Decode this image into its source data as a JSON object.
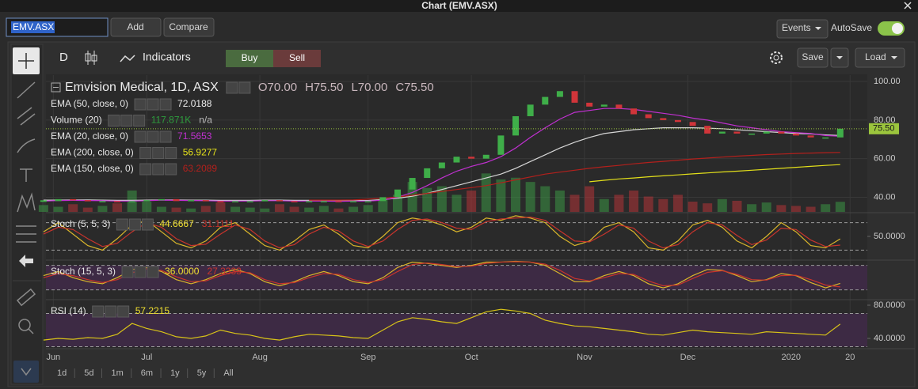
{
  "window": {
    "title": "Chart (EMV.ASX)"
  },
  "toolbar": {
    "symbol": "EMV.ASX",
    "add": "Add",
    "compare": "Compare",
    "events": "Events",
    "autosave": "AutoSave"
  },
  "chart_toolbar": {
    "interval": "D",
    "indicators": "Indicators",
    "buy": "Buy",
    "sell": "Sell",
    "save": "Save",
    "load": "Load"
  },
  "chart_data": {
    "type": "candlestick",
    "title": "Emvision Medical, 1D, ASX",
    "ohlc": [
      "O70.00",
      "H75.50",
      "L70.00",
      "C75.50"
    ],
    "xlim": [
      0.5,
      167.5
    ],
    "xticks": [
      {
        "value": 2,
        "label": "Jun"
      },
      {
        "value": 21,
        "label": "Jul"
      },
      {
        "value": 44,
        "label": "Aug"
      },
      {
        "value": 66,
        "label": "Sep"
      },
      {
        "value": 87,
        "label": "Oct"
      },
      {
        "value": 110,
        "label": "Nov"
      },
      {
        "value": 131,
        "label": "Dec"
      },
      {
        "value": 152,
        "label": "2020"
      },
      {
        "value": 164,
        "label": "20"
      }
    ],
    "ylim": [
      32.4,
      103.3
    ],
    "yticks": [
      {
        "value": 100,
        "label": "100.00"
      },
      {
        "value": 80,
        "label": "80.00"
      },
      {
        "value": 60,
        "label": "60.00"
      },
      {
        "value": 40,
        "label": "40.00"
      }
    ],
    "grid": true,
    "x": [
      0,
      3,
      6,
      9,
      12,
      15,
      18,
      21,
      24,
      27,
      30,
      33,
      36,
      39,
      42,
      45,
      48,
      51,
      54,
      57,
      60,
      63,
      66,
      69,
      72,
      75,
      78,
      81,
      84,
      87,
      90,
      93,
      96,
      99,
      102,
      105,
      108,
      111,
      114,
      117,
      120,
      123,
      126,
      129,
      132,
      135,
      138,
      141,
      144,
      147,
      150,
      153,
      156,
      159,
      162
    ],
    "close": [
      38,
      39,
      38.5,
      38,
      38,
      37.5,
      38,
      38.5,
      39,
      38,
      38.5,
      38,
      37.5,
      38,
      38,
      38.5,
      38,
      37.5,
      38,
      38,
      37.5,
      38,
      38,
      40,
      44,
      50,
      55,
      58,
      61,
      60,
      62,
      72,
      82,
      88,
      92,
      95,
      89,
      87,
      88,
      86,
      83,
      81,
      80,
      79,
      77,
      73,
      74,
      73,
      73,
      74,
      73,
      72,
      71,
      71,
      75.5
    ],
    "up_color": "#3fae49",
    "down_color": "#d0353a",
    "last_price": {
      "value": 75.5,
      "label": "75.50",
      "color": "#9bc53d"
    },
    "emas": [
      {
        "name": "EMA (50, close, 0)",
        "value_label": "72.0188",
        "color": "#d6d6d6",
        "values": [
          38.5,
          38.5,
          38.6,
          38.6,
          38.5,
          38.4,
          38.4,
          38.5,
          38.6,
          38.6,
          38.5,
          38.5,
          38.4,
          38.4,
          38.4,
          38.5,
          38.5,
          38.4,
          38.4,
          38.4,
          38.3,
          38.3,
          38.3,
          38.8,
          39.5,
          40.5,
          42,
          44,
          46,
          48,
          50,
          52,
          55,
          58.5,
          62,
          65.5,
          68.5,
          71,
          73,
          74,
          75,
          75.5,
          76,
          76,
          76,
          75.8,
          75.5,
          75,
          74.5,
          74,
          73.5,
          73,
          72.8,
          72.3,
          72
        ]
      },
      {
        "name": "EMA (20, close, 0)",
        "value_label": "71.5653",
        "color": "#c030d0",
        "values": [
          38,
          38.3,
          38.4,
          38.3,
          38.2,
          38,
          38,
          38.2,
          38.5,
          38.4,
          38.3,
          38.2,
          38,
          38,
          38,
          38.2,
          38.2,
          38,
          38,
          38,
          37.9,
          38,
          38,
          38.5,
          40,
          42.5,
          46,
          50,
          53.5,
          56,
          58,
          61,
          65.5,
          71,
          76,
          80.5,
          84,
          85,
          86,
          86,
          85.5,
          84.5,
          83.5,
          82.5,
          81,
          80,
          78.5,
          77,
          76,
          75,
          74,
          73.5,
          73,
          72,
          71.6
        ]
      },
      {
        "name": "EMA (200, close, 0)",
        "value_label": "56.9277",
        "color": "#e3e01a",
        "values": [
          null,
          null,
          null,
          null,
          null,
          null,
          null,
          null,
          null,
          null,
          null,
          null,
          null,
          null,
          null,
          null,
          null,
          null,
          null,
          null,
          null,
          null,
          null,
          null,
          null,
          null,
          null,
          null,
          null,
          null,
          null,
          null,
          null,
          null,
          null,
          null,
          null,
          48,
          48.8,
          49.5,
          50,
          50.6,
          51.1,
          51.6,
          52.1,
          52.6,
          53.1,
          53.5,
          54,
          54.5,
          55,
          55.5,
          56,
          56.5,
          56.9
        ]
      },
      {
        "name": "EMA (150, close, 0)",
        "value_label": "63.2089",
        "color": "#b3201c",
        "values": [
          null,
          null,
          null,
          null,
          null,
          null,
          null,
          null,
          null,
          null,
          null,
          null,
          null,
          null,
          null,
          null,
          null,
          null,
          38.5,
          38.5,
          38.5,
          38.6,
          39,
          39.5,
          40.2,
          41,
          42,
          43,
          44,
          45,
          46,
          47.5,
          49,
          50.5,
          52,
          53,
          54,
          55,
          55.8,
          56.5,
          57.3,
          58,
          58.6,
          59.2,
          59.8,
          60.3,
          60.8,
          61.3,
          61.7,
          62.1,
          62.4,
          62.7,
          62.9,
          63.1,
          63.2
        ]
      }
    ],
    "volume": {
      "name": "Volume (20)",
      "value_label": "117.871K",
      "average_label": "n/a",
      "color": "#2e9e3e",
      "ylim": [
        0,
        1600
      ],
      "values": [
        80,
        60,
        90,
        50,
        70,
        100,
        250,
        120,
        60,
        50,
        40,
        70,
        110,
        60,
        50,
        40,
        90,
        60,
        50,
        70,
        40,
        60,
        80,
        150,
        200,
        350,
        280,
        300,
        200,
        250,
        450,
        380,
        400,
        350,
        300,
        250,
        200,
        300,
        150,
        200,
        250,
        180,
        150,
        200,
        120,
        100,
        150,
        130,
        90,
        110,
        80,
        70,
        60,
        90,
        117.871
      ]
    },
    "oscillators": [
      {
        "name": "Stoch (5, 5, 3)",
        "ylim": [
          0,
          100
        ],
        "yticks": [
          {
            "value": 50,
            "label": "50.0000"
          }
        ],
        "bands": [
          20,
          80
        ],
        "fill": false,
        "series": [
          {
            "value_label": "44.6667",
            "color": "#d9b52a",
            "values": [
              60,
              80,
              55,
              30,
              20,
              45,
              75,
              85,
              60,
              35,
              25,
              40,
              70,
              80,
              55,
              30,
              20,
              40,
              65,
              75,
              55,
              30,
              25,
              50,
              80,
              90,
              85,
              75,
              60,
              70,
              90,
              85,
              95,
              90,
              80,
              50,
              30,
              40,
              70,
              80,
              60,
              25,
              20,
              40,
              75,
              85,
              70,
              40,
              25,
              50,
              80,
              60,
              30,
              25,
              44.6667
            ]
          },
          {
            "value_label": "31.1111",
            "color": "#c8342c",
            "values": [
              55,
              70,
              65,
              45,
              28,
              35,
              60,
              80,
              70,
              45,
              30,
              33,
              55,
              75,
              65,
              40,
              25,
              32,
              55,
              70,
              62,
              40,
              28,
              40,
              65,
              85,
              88,
              80,
              68,
              65,
              82,
              88,
              90,
              92,
              85,
              62,
              40,
              38,
              55,
              75,
              68,
              40,
              25,
              32,
              60,
              80,
              75,
              52,
              32,
              42,
              68,
              65,
              42,
              28,
              31.1111
            ]
          }
        ]
      },
      {
        "name": "Stoch (15, 5, 3)",
        "ylim": [
          -2,
          91
        ],
        "yticks": [],
        "bands": [
          20,
          80
        ],
        "fill": true,
        "series": [
          {
            "value_label": "36.0000",
            "color": "#d9b52a",
            "values": [
              55,
              65,
              50,
              40,
              35,
              50,
              70,
              75,
              65,
              45,
              35,
              45,
              60,
              70,
              60,
              40,
              30,
              40,
              55,
              65,
              55,
              40,
              35,
              50,
              75,
              88,
              85,
              80,
              75,
              80,
              88,
              88,
              90,
              88,
              80,
              60,
              40,
              40,
              55,
              65,
              55,
              35,
              25,
              35,
              55,
              70,
              68,
              55,
              40,
              45,
              60,
              55,
              38,
              25,
              36
            ]
          },
          {
            "value_label": "27.3333",
            "color": "#c8342c",
            "values": [
              50,
              60,
              55,
              45,
              38,
              45,
              62,
              72,
              68,
              52,
              40,
              42,
              55,
              65,
              62,
              45,
              35,
              38,
              50,
              60,
              58,
              45,
              38,
              45,
              65,
              82,
              86,
              82,
              77,
              78,
              85,
              88,
              89,
              88,
              83,
              68,
              48,
              42,
              50,
              60,
              58,
              42,
              30,
              32,
              48,
              63,
              67,
              58,
              45,
              44,
              55,
              56,
              45,
              32,
              27.3333
            ]
          }
        ]
      },
      {
        "name": "RSI (14)",
        "ylim": [
          28.6,
          85.7
        ],
        "yticks": [
          {
            "value": 80,
            "label": "80.0000"
          },
          {
            "value": 40,
            "label": "40.0000"
          }
        ],
        "bands": [
          30,
          70
        ],
        "fill": true,
        "series": [
          {
            "value_label": "57.2215",
            "color": "#d8c318",
            "values": [
              38,
              40,
              39,
              41,
              40,
              45,
              58,
              52,
              48,
              42,
              40,
              43,
              50,
              46,
              44,
              40,
              38,
              42,
              45,
              44,
              43,
              41,
              40,
              50,
              60,
              65,
              63,
              60,
              58,
              65,
              72,
              75,
              73,
              70,
              62,
              58,
              55,
              54,
              52,
              50,
              48,
              45,
              44,
              47,
              50,
              48,
              47,
              46,
              45,
              48,
              47,
              46,
              45,
              44,
              57.2215
            ]
          }
        ]
      }
    ]
  },
  "ranges": [
    "1d",
    "5d",
    "1m",
    "6m",
    "1y",
    "5y",
    "All"
  ]
}
